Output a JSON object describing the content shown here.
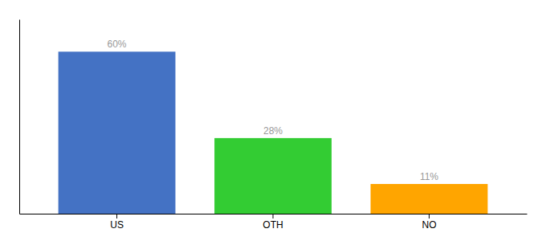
{
  "chart_data": {
    "type": "bar",
    "categories": [
      "US",
      "OTH",
      "NO"
    ],
    "values": [
      60,
      28,
      11
    ],
    "value_labels": [
      "60%",
      "28%",
      "11%"
    ],
    "data_labels": true,
    "colors": [
      "#4472C4",
      "#33CC33",
      "#FFA500"
    ],
    "ylim": [
      0,
      72
    ],
    "tick_labels": "x"
  }
}
